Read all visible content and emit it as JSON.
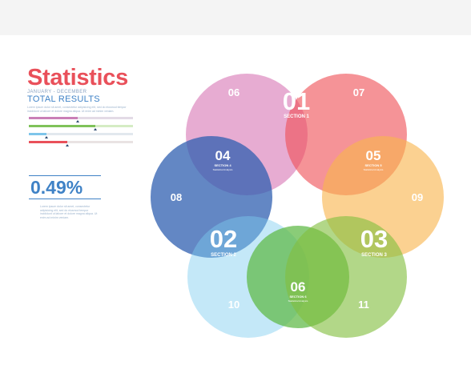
{
  "header": {
    "title": "Statistics",
    "period": "JANUARY - DECEMBER",
    "subtitle": "TOTAL RESULTS",
    "description": "Lorem ipsum dolor sit amet, consectetur adipisicing elit, sed do eiusmod tempor incididunt ut labore et dolore magna aliqua. Ut enim ad minim veniam."
  },
  "bars": [
    {
      "fill": 0.47,
      "track_color": "#e3dbe6",
      "fill_color": "#c97fb7"
    },
    {
      "fill": 0.64,
      "track_color": "#d5ecc4",
      "fill_color": "#7fc25a"
    },
    {
      "fill": 0.17,
      "track_color": "#e2e8ee",
      "fill_color": "#7ec5ea"
    },
    {
      "fill": 0.37,
      "track_color": "#e9e3e3",
      "fill_color": "#e9505a"
    }
  ],
  "stat": {
    "value": "0.49%",
    "description": "Lorem ipsum dolor sit amet, consectetur adipisicing elit, sed do eiusmod tempor incididunt ut labore et dolore magna aliqua. Ut enim ad minim veniam."
  },
  "venn": {
    "circles": [
      {
        "color": "#d879b6"
      },
      {
        "color": "#ef5157"
      },
      {
        "color": "#f9b44e"
      },
      {
        "color": "#2f5fb0"
      },
      {
        "color": "#7ccbf0"
      },
      {
        "color": "#5db944"
      },
      {
        "color": "#82bf3f"
      }
    ],
    "outer_labels": [
      "06",
      "07",
      "08",
      "09",
      "10",
      "11"
    ],
    "sections": [
      {
        "number": "01",
        "label": "SECTION 1"
      },
      {
        "number": "02",
        "label": "SECTION 2"
      },
      {
        "number": "03",
        "label": "SECTION 3"
      },
      {
        "number": "04",
        "label": "SECTION 4",
        "caption": "Statistical Analysis"
      },
      {
        "number": "05",
        "label": "SECTION 5",
        "caption": "Statistical Analysis"
      },
      {
        "number": "06",
        "label": "SECTION 6",
        "caption": "Statistical Analysis"
      }
    ]
  }
}
